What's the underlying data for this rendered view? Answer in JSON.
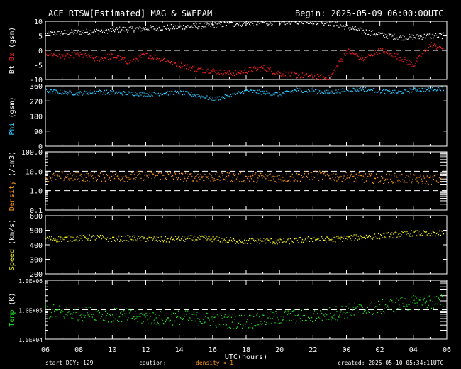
{
  "header": {
    "title": "ACE RTSW[Estimated] MAG & SWEPAM",
    "begin": "Begin: 2025-05-09 06:00:00UTC"
  },
  "footer": {
    "start_doy": "start DOY: 129",
    "caution": "caution:",
    "density_note": "density < 1",
    "created": "created: 2025-05-10 05:34:11UTC"
  },
  "colors": {
    "bt": "#ffffff",
    "bz": "#ff2020",
    "phi": "#30c8ff",
    "density": "#ff9a20",
    "speed": "#f0f020",
    "temp": "#20e020"
  },
  "chart_data": [
    {
      "type": "scatter",
      "panel": "mag",
      "ylabel_parts": [
        "Bt",
        "Bz",
        "(gsm)"
      ],
      "ylim": [
        -10,
        10
      ],
      "yticks": [
        10,
        5,
        0,
        -5,
        -10
      ],
      "reference_lines": [
        0
      ],
      "series": [
        {
          "name": "Bt",
          "x": [
            0,
            1,
            2,
            3,
            4,
            5,
            6,
            7,
            8,
            9,
            10,
            11,
            12,
            13,
            14,
            15,
            16,
            17,
            18,
            19,
            20,
            21,
            22,
            23,
            23.5
          ],
          "values": [
            5.5,
            6,
            6.3,
            6.5,
            7,
            7.3,
            7.5,
            7.8,
            8,
            8.3,
            8.7,
            9,
            9.3,
            9.5,
            9.8,
            10,
            10,
            9.5,
            8,
            6.5,
            5.5,
            4.5,
            4.5,
            5,
            5
          ]
        },
        {
          "name": "Bz",
          "x": [
            0,
            1,
            2,
            3,
            4,
            5,
            6,
            7,
            8,
            9,
            10,
            11,
            12,
            13,
            14,
            15,
            16,
            17,
            18,
            19,
            20,
            21,
            22,
            23,
            23.5
          ],
          "values": [
            -1,
            -2,
            -1.5,
            -3,
            -2,
            -4,
            -1.5,
            -3,
            -5,
            -6.5,
            -7,
            -8,
            -7,
            -6,
            -8,
            -8.5,
            -9,
            -9.5,
            0,
            -3,
            0,
            -2,
            -5,
            2,
            1
          ]
        }
      ]
    },
    {
      "type": "scatter",
      "panel": "phi",
      "ylabel": "Phi (gsm)",
      "ylim": [
        0,
        360
      ],
      "yticks": [
        360,
        270,
        180,
        90,
        0
      ],
      "series": [
        {
          "name": "Phi",
          "x": [
            0,
            1,
            2,
            3,
            4,
            5,
            6,
            7,
            8,
            9,
            10,
            11,
            12,
            13,
            14,
            15,
            16,
            17,
            18,
            19,
            20,
            21,
            22,
            23,
            23.5
          ],
          "values": [
            330,
            320,
            315,
            325,
            320,
            315,
            310,
            315,
            320,
            305,
            280,
            300,
            330,
            320,
            310,
            335,
            330,
            320,
            335,
            340,
            330,
            320,
            335,
            340,
            345
          ]
        }
      ]
    },
    {
      "type": "scatter",
      "panel": "density",
      "ylabel": "Density (/cm3)",
      "scale": "log",
      "ylim": [
        0.1,
        100
      ],
      "yticks": [
        "100.0",
        "10.0",
        "1.0",
        "0.1"
      ],
      "reference_lines": [
        10,
        1
      ],
      "series": [
        {
          "name": "Density",
          "x": [
            0,
            1,
            2,
            3,
            4,
            5,
            6,
            7,
            8,
            9,
            10,
            11,
            12,
            13,
            14,
            15,
            16,
            17,
            18,
            19,
            20,
            21,
            22,
            23,
            23.5
          ],
          "values": [
            5,
            5.5,
            5,
            5,
            5.5,
            5,
            6,
            6,
            5,
            5.5,
            5,
            5,
            4.5,
            5,
            4.5,
            5,
            6,
            5.5,
            5,
            4.5,
            4,
            4.5,
            4,
            3.5,
            4
          ]
        }
      ]
    },
    {
      "type": "scatter",
      "panel": "speed",
      "ylabel": "Speed (km/s)",
      "ylim": [
        200,
        600
      ],
      "yticks": [
        600,
        500,
        400,
        300,
        200
      ],
      "series": [
        {
          "name": "Speed",
          "x": [
            0,
            1,
            2,
            3,
            4,
            5,
            6,
            7,
            8,
            9,
            10,
            11,
            12,
            13,
            14,
            15,
            16,
            17,
            18,
            19,
            20,
            21,
            22,
            23,
            23.5
          ],
          "values": [
            440,
            440,
            445,
            450,
            440,
            445,
            440,
            435,
            440,
            445,
            440,
            430,
            425,
            430,
            420,
            430,
            440,
            435,
            445,
            455,
            460,
            470,
            480,
            475,
            480
          ]
        }
      ]
    },
    {
      "type": "scatter",
      "panel": "temp",
      "ylabel": "Temp (K)",
      "scale": "log",
      "ylim": [
        10000,
        1000000
      ],
      "yticks": [
        "1.0E+06",
        "1.0E+05",
        "1.0E+04"
      ],
      "reference_lines": [
        100000
      ],
      "series": [
        {
          "name": "Temp",
          "x": [
            0,
            1,
            2,
            3,
            4,
            5,
            6,
            7,
            8,
            9,
            10,
            11,
            12,
            13,
            14,
            15,
            16,
            17,
            18,
            19,
            20,
            21,
            22,
            23,
            23.5
          ],
          "values": [
            90000,
            80000,
            70000,
            75000,
            65000,
            60000,
            55000,
            50000,
            55000,
            50000,
            45000,
            40000,
            40000,
            45000,
            55000,
            60000,
            65000,
            70000,
            90000,
            100000,
            120000,
            150000,
            170000,
            180000,
            190000
          ]
        }
      ]
    }
  ],
  "xaxis": {
    "label": "UTC(hours)",
    "xlim": [
      0,
      24
    ],
    "tick_labels": [
      "06",
      "08",
      "10",
      "12",
      "14",
      "16",
      "18",
      "20",
      "22",
      "00",
      "02",
      "04",
      "06"
    ]
  }
}
